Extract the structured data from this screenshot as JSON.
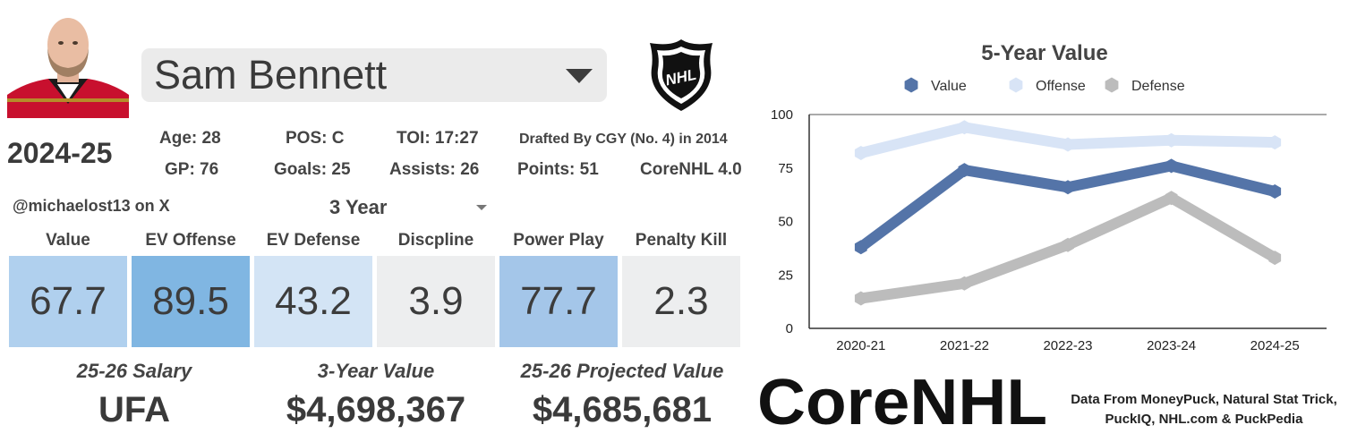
{
  "player": {
    "name": "Sam Bennett",
    "season": "2024-25",
    "stats": {
      "age": "Age: 28",
      "pos": "POS: C",
      "toi": "TOI: 17:27",
      "drafted": "Drafted By CGY (No. 4) in 2014",
      "gp": "GP: 76",
      "goals": "Goals: 25",
      "assists": "Assists: 26",
      "points": "Points: 51",
      "model": "CoreNHL 4.0"
    }
  },
  "handle": "@michaelost13 on X",
  "window_select": {
    "value": "3 Year"
  },
  "categories": [
    {
      "label": "Value",
      "value": "67.7",
      "color": "#b0d0ee"
    },
    {
      "label": "EV Offense",
      "value": "89.5",
      "color": "#80b6e2"
    },
    {
      "label": "EV Defense",
      "value": "43.2",
      "color": "#d3e4f5"
    },
    {
      "label": "Discpline",
      "value": "3.9",
      "color": "#edeeef"
    },
    {
      "label": "Power Play",
      "value": "77.7",
      "color": "#a4c6e9"
    },
    {
      "label": "Penalty Kill",
      "value": "2.3",
      "color": "#edeeef"
    }
  ],
  "contract": {
    "salary_label": "25-26 Salary",
    "salary_value": "UFA",
    "three_year_label": "3-Year Value",
    "three_year_value": "$4,698,367",
    "projected_label": "25-26 Projected Value",
    "projected_value": "$4,685,681"
  },
  "brand": "CoreNHL",
  "credits": "Data From MoneyPuck, Natural Stat Trick, PuckIQ, NHL.com & PuckPedia",
  "logo": {
    "text": "NHL"
  },
  "chart_data": {
    "type": "line",
    "title": "5-Year Value",
    "categories": [
      "2020-21",
      "2021-22",
      "2022-23",
      "2023-24",
      "2024-25"
    ],
    "ylim": [
      0,
      100
    ],
    "yticks": [
      0,
      25,
      50,
      75,
      100
    ],
    "grid": false,
    "legend_position": "top",
    "series": [
      {
        "name": "Value",
        "values": [
          38,
          74,
          66,
          76,
          64
        ],
        "color": "#5474a8"
      },
      {
        "name": "Offense",
        "values": [
          82,
          94,
          86,
          88,
          87
        ],
        "color": "#d8e4f6"
      },
      {
        "name": "Defense",
        "values": [
          14,
          21,
          39,
          61,
          33
        ],
        "color": "#bcbcbc"
      }
    ]
  }
}
